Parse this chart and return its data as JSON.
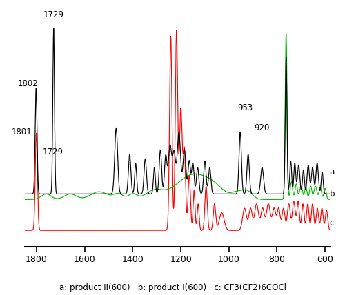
{
  "xlim": [
    1850,
    580
  ],
  "xticks": [
    1800,
    1600,
    1400,
    1200,
    1000,
    800,
    600
  ],
  "caption": "a: product II(600)   b: product I(600)   c: CF3(CF2)6COCl",
  "line_colors": [
    "#000000",
    "#00bb00",
    "#ff0000"
  ]
}
